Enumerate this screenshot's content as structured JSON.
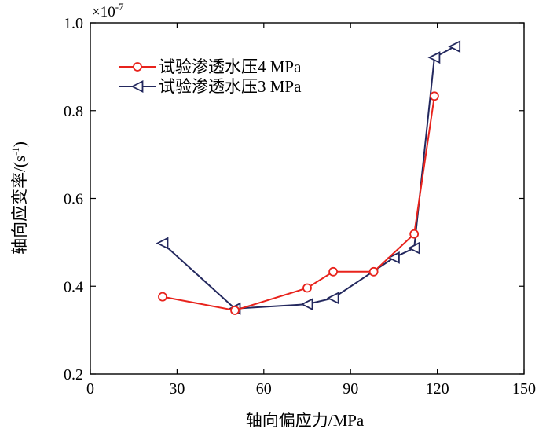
{
  "chart_data": {
    "type": "line",
    "title": "",
    "xlabel": "轴向偏应力/MPa",
    "ylabel": "轴向应变率/(s-1)",
    "ylabel_parts": {
      "main": "轴向应变率/(s",
      "sup": "-1",
      "close": ")"
    },
    "y_multiplier": "×10-7",
    "y_multiplier_parts": {
      "base": "×10",
      "sup": "-7"
    },
    "xlim": [
      0,
      150
    ],
    "ylim": [
      0.2,
      1.0
    ],
    "xticks": [
      0,
      30,
      60,
      90,
      120,
      150
    ],
    "yticks": [
      0.2,
      0.4,
      0.6,
      0.8,
      1.0
    ],
    "x_tick_labels": [
      "0",
      "30",
      "60",
      "90",
      "120",
      "150"
    ],
    "y_tick_labels": [
      "0.2",
      "0.4",
      "0.6",
      "0.8",
      "1.0"
    ],
    "grid": false,
    "legend_position": "top-left",
    "series": [
      {
        "name": "试验渗透水压4 MPa",
        "color": "#e8231c",
        "marker": "circle",
        "x": [
          25,
          50,
          75,
          84,
          98,
          112,
          119
        ],
        "y": [
          0.376,
          0.345,
          0.396,
          0.433,
          0.433,
          0.519,
          0.833
        ]
      },
      {
        "name": "试验渗透水压3 MPa",
        "color": "#23285e",
        "marker": "triangle-left",
        "x": [
          25,
          50,
          75,
          84,
          105,
          112,
          119,
          126
        ],
        "y": [
          0.498,
          0.349,
          0.359,
          0.373,
          0.465,
          0.487,
          0.921,
          0.946
        ]
      }
    ]
  }
}
